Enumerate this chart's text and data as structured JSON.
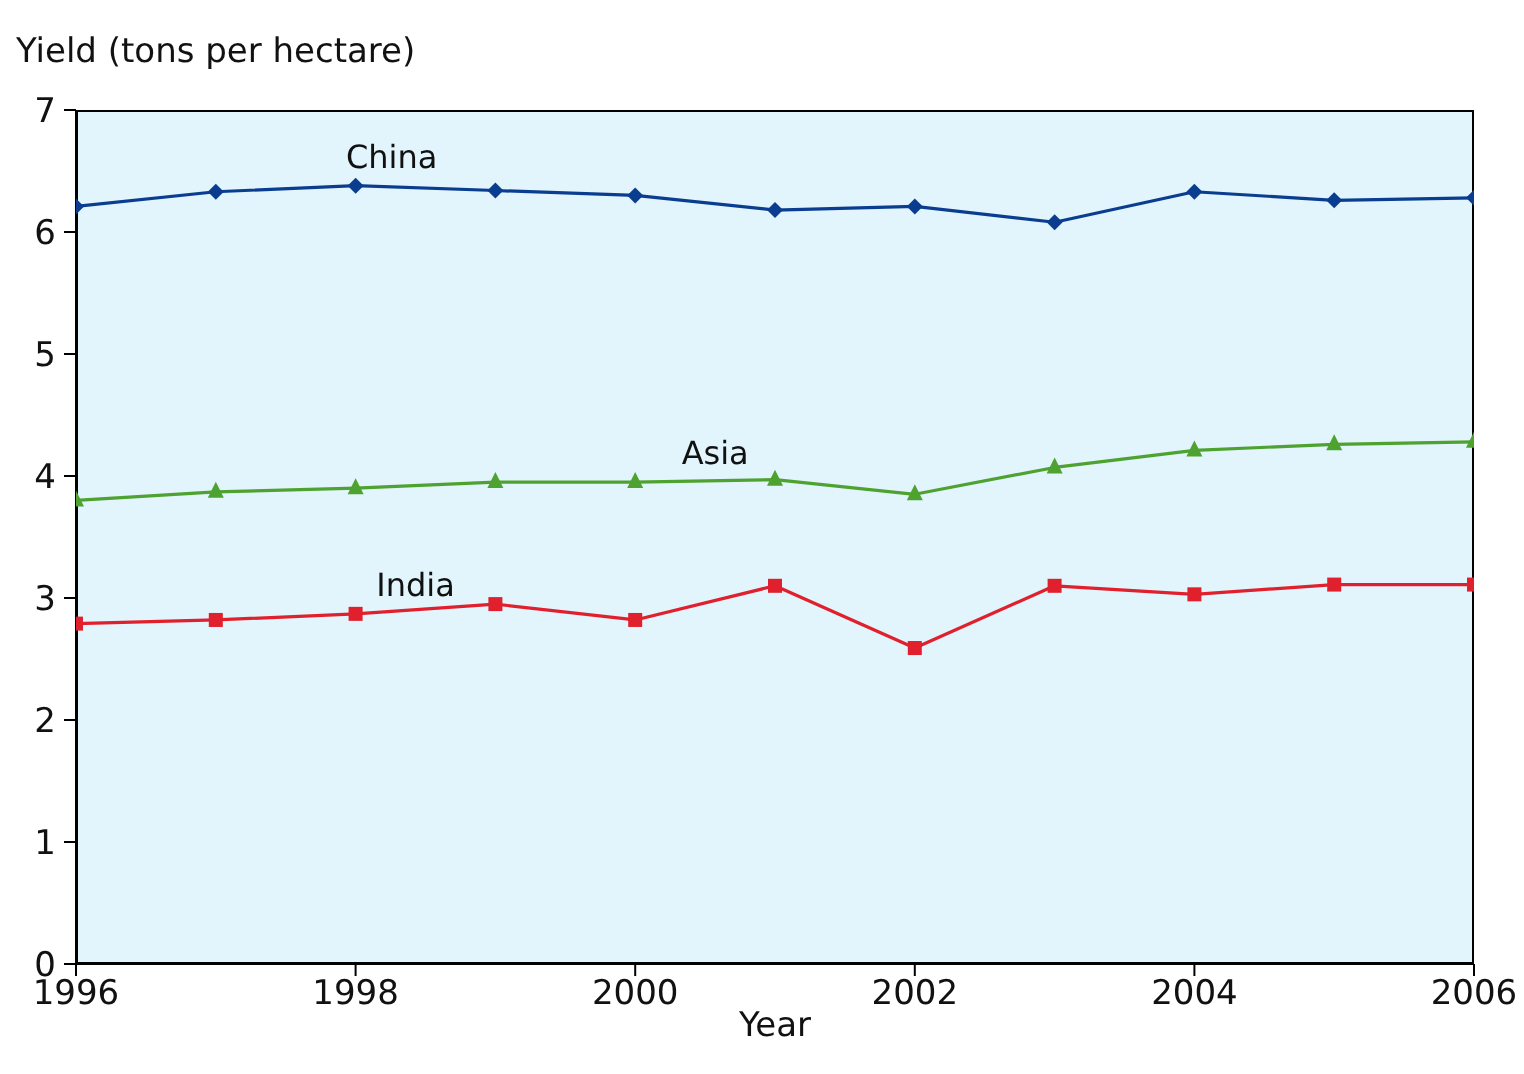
{
  "chart_data": {
    "type": "line",
    "ylabel": "Yield (tons per hectare)",
    "xlabel": "Year",
    "x": [
      1996,
      1997,
      1998,
      1999,
      2000,
      2001,
      2002,
      2003,
      2004,
      2005,
      2006
    ],
    "xlim": [
      1996,
      2006
    ],
    "xticks": [
      1996,
      1998,
      2000,
      2002,
      2004,
      2006
    ],
    "ylim": [
      0,
      7
    ],
    "yticks": [
      0,
      1,
      2,
      3,
      4,
      5,
      6,
      7
    ],
    "series": [
      {
        "name": "China",
        "color": "#0a3d8f",
        "marker": "diamond",
        "values": [
          6.21,
          6.33,
          6.38,
          6.34,
          6.3,
          6.18,
          6.21,
          6.08,
          6.33,
          6.26,
          6.28
        ]
      },
      {
        "name": "Asia",
        "color": "#4ea22f",
        "marker": "triangle",
        "values": [
          3.8,
          3.87,
          3.9,
          3.95,
          3.95,
          3.97,
          3.85,
          4.07,
          4.21,
          4.26,
          4.28
        ]
      },
      {
        "name": "India",
        "color": "#e0202c",
        "marker": "square",
        "values": [
          2.79,
          2.82,
          2.87,
          2.95,
          2.82,
          3.1,
          2.59,
          3.1,
          3.03,
          3.11,
          3.11
        ]
      }
    ]
  }
}
